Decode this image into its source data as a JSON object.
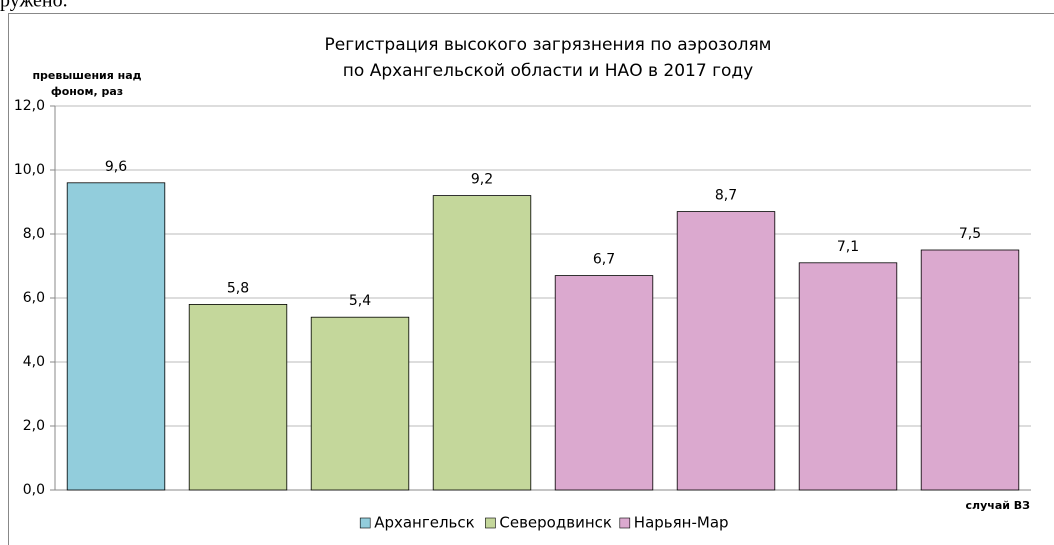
{
  "caption_fragment": "ружено.",
  "chart_data": {
    "type": "bar",
    "title": [
      "Регистрация высокого загрязнения по аэрозолям",
      "по Архангельской области и НАО в 2017 году"
    ],
    "y_label": [
      "превышения над",
      "фоном, раз"
    ],
    "x_label": "случай ВЗ",
    "categories": [
      null,
      null,
      null,
      null,
      null,
      null,
      null,
      null
    ],
    "series": [
      {
        "name": "Архангельск",
        "color": "#92cddc",
        "values": [
          9.6,
          null,
          null,
          null,
          null,
          null,
          null,
          null
        ],
        "value_labels": [
          "9,6",
          null,
          null,
          null,
          null,
          null,
          null,
          null
        ]
      },
      {
        "name": "Северодвинск",
        "color": "#c4d79b",
        "values": [
          null,
          5.8,
          5.4,
          9.2,
          null,
          null,
          null,
          null
        ],
        "value_labels": [
          null,
          "5,8",
          "5,4",
          "9,2",
          null,
          null,
          null,
          null
        ]
      },
      {
        "name": "Нарьян-Мар",
        "color": "#dba9cf",
        "values": [
          null,
          null,
          null,
          null,
          6.7,
          8.7,
          7.1,
          7.5
        ],
        "value_labels": [
          null,
          null,
          null,
          null,
          "6,7",
          "8,7",
          "7,1",
          "7,5"
        ]
      }
    ],
    "ylim": [
      0,
      12
    ],
    "yticks": [
      {
        "value": 0,
        "label": "0,0"
      },
      {
        "value": 2,
        "label": "2,0"
      },
      {
        "value": 4,
        "label": "4,0"
      },
      {
        "value": 6,
        "label": "6,0"
      },
      {
        "value": 8,
        "label": "8,0"
      },
      {
        "value": 10,
        "label": "10,0"
      },
      {
        "value": 12,
        "label": "12,0"
      }
    ],
    "grid": true,
    "legend": "bottom"
  }
}
